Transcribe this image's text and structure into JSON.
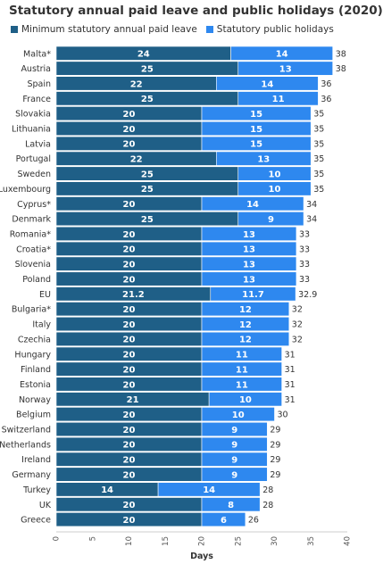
{
  "chart_data": {
    "type": "bar",
    "orientation": "horizontal",
    "stacked": true,
    "title": "Statutory annual paid leave and public holidays (2020)",
    "xlabel": "Days",
    "ylabel": "",
    "xlim": [
      0,
      40
    ],
    "xticks": [
      0,
      5,
      10,
      15,
      20,
      25,
      30,
      35,
      40
    ],
    "grid": false,
    "legend_position": "top-left",
    "categories": [
      "Malta*",
      "Austria",
      "Spain",
      "France",
      "Slovakia",
      "Lithuania",
      "Latvia",
      "Portugal",
      "Sweden",
      "Luxembourg",
      "Cyprus*",
      "Denmark",
      "Romania*",
      "Croatia*",
      "Slovenia",
      "Poland",
      "EU",
      "Bulgaria*",
      "Italy",
      "Czechia",
      "Hungary",
      "Finland",
      "Estonia",
      "Norway",
      "Belgium",
      "Switzerland",
      "Netherlands",
      "Ireland",
      "Germany",
      "Turkey",
      "UK",
      "Greece"
    ],
    "series": [
      {
        "name": "Minimum statutory annual paid leave",
        "color": "#1f5f87",
        "values": [
          24,
          25,
          22,
          25,
          20,
          20,
          20,
          22,
          25,
          25,
          20,
          25,
          20,
          20,
          20,
          20,
          21.2,
          20,
          20,
          20,
          20,
          20,
          20,
          21,
          20,
          20,
          20,
          20,
          20,
          14,
          20,
          20
        ]
      },
      {
        "name": "Statutory public holidays",
        "color": "#2e88ef",
        "values": [
          14,
          13,
          14,
          11,
          15,
          15,
          15,
          13,
          10,
          10,
          14,
          9,
          13,
          13,
          13,
          13,
          11.7,
          12,
          12,
          12,
          11,
          11,
          11,
          10,
          10,
          9,
          9,
          9,
          9,
          14,
          8,
          6
        ]
      }
    ],
    "totals": [
      "38",
      "38",
      "36",
      "36",
      "35",
      "35",
      "35",
      "35",
      "35",
      "35",
      "34",
      "34",
      "33",
      "33",
      "33",
      "33",
      "32.9",
      "32",
      "32",
      "32",
      "31",
      "31",
      "31",
      "31",
      "30",
      "29",
      "29",
      "29",
      "29",
      "28",
      "28",
      "26"
    ]
  }
}
